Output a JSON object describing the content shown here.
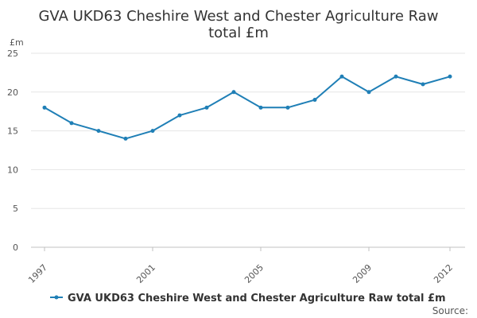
{
  "chart_data": {
    "type": "line",
    "title_line1": "GVA UKD63 Cheshire West and Chester Agriculture Raw",
    "title_line2": "total £m",
    "ylabel": "£m",
    "xlabel": "",
    "ylim": [
      0,
      25
    ],
    "yticks": [
      0,
      5,
      10,
      15,
      20,
      25
    ],
    "x": [
      1997,
      1998,
      1999,
      2000,
      2001,
      2002,
      2003,
      2004,
      2005,
      2006,
      2007,
      2008,
      2009,
      2010,
      2011,
      2012
    ],
    "xtick_labels": [
      "1997",
      "2001",
      "2005",
      "2009",
      "2012"
    ],
    "series": [
      {
        "name": "GVA UKD63 Cheshire West and Chester Agriculture Raw total £m",
        "values": [
          18,
          16,
          15,
          14,
          15,
          17,
          18,
          20,
          18,
          18,
          19,
          22,
          20,
          22,
          21,
          22
        ]
      }
    ],
    "series_color": "#1f7fb6",
    "grid": true,
    "legend_position": "bottom",
    "source_label": "Source:"
  }
}
